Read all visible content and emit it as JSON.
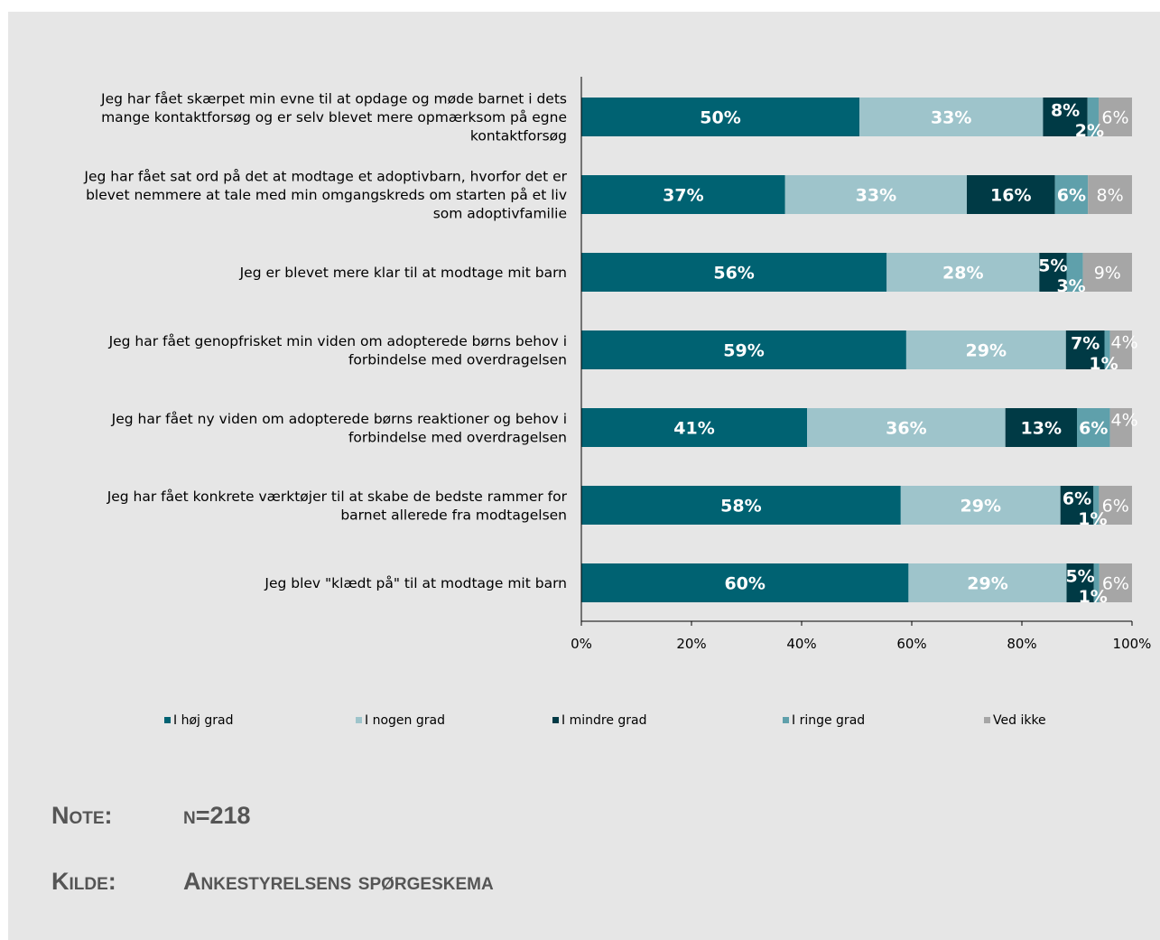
{
  "chart_data": {
    "type": "bar",
    "orientation": "horizontal",
    "stacked": true,
    "percent_stacked": true,
    "categories": [
      "Jeg har fået skærpet min evne til at opdage og møde barnet i dets mange kontaktforsøg og er selv blevet mere opmærksom på egne kontaktforsøg",
      "Jeg har fået sat ord på det at modtage et adoptivbarn, hvorfor det er blevet nemmere at tale med min omgangskreds om starten på et liv som adoptivfamilie",
      "Jeg er blevet mere klar til at modtage mit barn",
      "Jeg har fået genopfrisket min viden om adopterede børns behov i forbindelse med overdragelsen",
      "Jeg har fået ny viden om adopterede børns reaktioner og behov i forbindelse med overdragelsen",
      "Jeg har fået konkrete værktøjer til at skabe de bedste rammer for barnet allerede fra modtagelsen",
      "Jeg blev \"klædt på\" til at modtage mit barn"
    ],
    "category_lines": [
      [
        "Jeg har fået skærpet min evne til at opdage og møde barnet i dets",
        "mange kontaktforsøg og er selv blevet mere opmærksom på egne",
        "kontaktforsøg"
      ],
      [
        "Jeg har fået sat ord på det at modtage et adoptivbarn, hvorfor det er",
        "blevet nemmere at tale med min omgangskreds om starten på et liv",
        "som adoptivfamilie"
      ],
      [
        "Jeg er blevet mere klar til at modtage mit barn"
      ],
      [
        "Jeg har fået genopfrisket min viden om adopterede børns behov i",
        "forbindelse med overdragelsen"
      ],
      [
        "Jeg har fået ny viden om adopterede børns reaktioner og behov i",
        "forbindelse med overdragelsen"
      ],
      [
        "Jeg har fået konkrete værktøjer til at skabe de bedste rammer for",
        "barnet allerede fra modtagelsen"
      ],
      [
        "Jeg blev \"klædt på\" til at modtage mit barn"
      ]
    ],
    "series": [
      {
        "name": "I høj grad",
        "color": "#006272",
        "label_color": "#ffffff",
        "values": [
          50,
          37,
          56,
          59,
          41,
          58,
          60
        ],
        "labels": [
          "50%",
          "37%",
          "56%",
          "59%",
          "41%",
          "58%",
          "60%"
        ]
      },
      {
        "name": "I nogen grad",
        "color": "#9ec4cb",
        "label_color": "#ffffff",
        "values": [
          33,
          33,
          28,
          29,
          36,
          29,
          29
        ],
        "labels": [
          "33%",
          "33%",
          "28%",
          "29%",
          "36%",
          "29%",
          "29%"
        ]
      },
      {
        "name": "I mindre grad",
        "color": "#003a45",
        "label_color": "#ffffff",
        "values": [
          8,
          16,
          5,
          7,
          13,
          6,
          5
        ],
        "labels": [
          "8%",
          "16%",
          "5%",
          "7%",
          "13%",
          "6%",
          "5%"
        ]
      },
      {
        "name": "I ringe grad",
        "color": "#5fa0ab",
        "label_color": "#ffffff",
        "values": [
          2,
          6,
          3,
          1,
          6,
          1,
          1
        ],
        "labels": [
          "2%",
          "6%",
          "3%",
          "1%",
          "6%",
          "1%",
          "1%"
        ]
      },
      {
        "name": "Ved ikke",
        "color": "#a6a6a6",
        "label_color": "#ffffff",
        "values": [
          6,
          8,
          9,
          4,
          4,
          6,
          6
        ],
        "labels": [
          "6%",
          "8%",
          "9%",
          "4%",
          "4%",
          "6%",
          "6%"
        ]
      }
    ],
    "x_ticks": [
      "0%",
      "20%",
      "40%",
      "60%",
      "80%",
      "100%"
    ],
    "xlim": [
      0,
      100
    ],
    "grid": false,
    "legend_position": "bottom"
  },
  "note": {
    "key": "Note:",
    "value": "n=218"
  },
  "source": {
    "key": "Kilde:",
    "value": "Ankestyrelsens spørgeskema"
  }
}
